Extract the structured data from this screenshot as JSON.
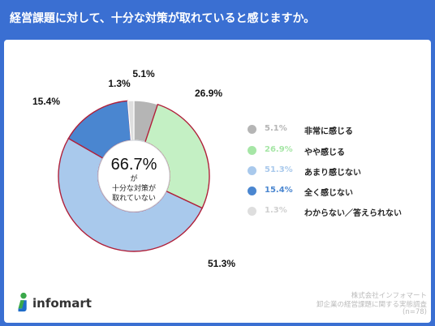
{
  "title": "経営課題に対して、十分な対策が取れていると感じますか。",
  "center": {
    "value": "66.7%",
    "line1": "が",
    "line2": "十分な対策が",
    "line3": "取れていない"
  },
  "chart_data": {
    "type": "pie",
    "categories": [
      "非常に感じる",
      "やや感じる",
      "あまり感じない",
      "全く感じない",
      "わからない／答えられない"
    ],
    "values": [
      5.1,
      26.9,
      51.3,
      15.4,
      1.3
    ],
    "data_labels": [
      "5.1%",
      "26.9%",
      "51.3%",
      "15.4%",
      "1.3%"
    ],
    "colors": [
      "#b5b5b5",
      "#c4f0c4",
      "#a9c9ec",
      "#4a86d0",
      "#dedede"
    ],
    "highlight_color": "#b0203a"
  },
  "legend": [
    {
      "pct": "5.1%",
      "label": "非常に感じる",
      "color": "#b5b5b5"
    },
    {
      "pct": "26.9%",
      "label": "やや感じる",
      "color": "#a6e6a6"
    },
    {
      "pct": "51.3%",
      "label": "あまり感じない",
      "color": "#a9c9ec"
    },
    {
      "pct": "15.4%",
      "label": "全く感じない",
      "color": "#4a86d0"
    },
    {
      "pct": "1.3%",
      "label": "わからない／答えられない",
      "color": "#dedede"
    }
  ],
  "logo": {
    "text": "infomart",
    "icon": "infomart-person-icon"
  },
  "credit": {
    "line1": "株式会社インフォマート",
    "line2": "卸企業の経営課題に関する実態調査",
    "line3": "(n=78)"
  }
}
